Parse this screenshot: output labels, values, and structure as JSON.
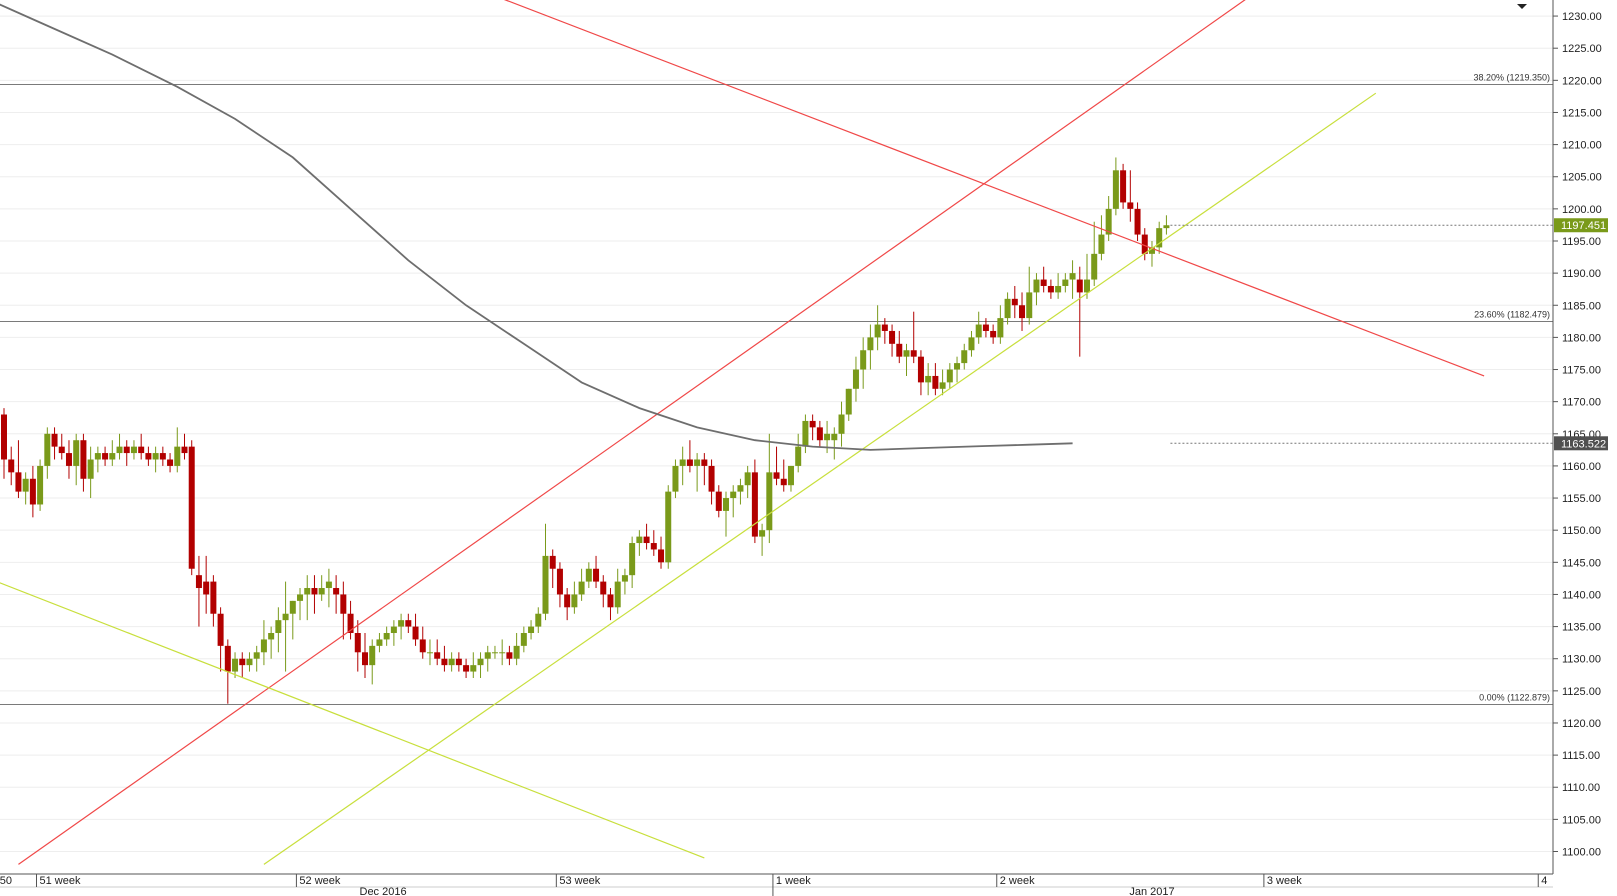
{
  "chart_data": {
    "type": "candlestick",
    "ylim": [
      1096.5,
      1232.5
    ],
    "y_ticks": [
      "1100.00",
      "1105.00",
      "1110.00",
      "1115.00",
      "1120.00",
      "1125.00",
      "1130.00",
      "1135.00",
      "1140.00",
      "1145.00",
      "1150.00",
      "1155.00",
      "1160.00",
      "1165.00",
      "1170.00",
      "1175.00",
      "1180.00",
      "1185.00",
      "1190.00",
      "1195.00",
      "1200.00",
      "1205.00",
      "1210.00",
      "1215.00",
      "1220.00",
      "1225.00",
      "1230.00"
    ],
    "x_week_labels": [
      {
        "label": "50",
        "bar": -1
      },
      {
        "label": "51 week",
        "bar": 4.5
      },
      {
        "label": "52 week",
        "bar": 40.5
      },
      {
        "label": "53 week",
        "bar": 76.5
      },
      {
        "label": "1 week",
        "bar": 106.5
      },
      {
        "label": "2 week",
        "bar": 137.5
      },
      {
        "label": "3 week",
        "bar": 174.5
      },
      {
        "label": "4",
        "bar": 212.5
      }
    ],
    "x_month_labels": [
      {
        "label": "Dec 2016",
        "bar": 52.5
      },
      {
        "label": "Jan 2017",
        "bar": 159
      }
    ],
    "bar_count_visible": 224,
    "candles": [
      [
        1168,
        1169,
        1158,
        1161
      ],
      [
        1161,
        1163,
        1157,
        1159
      ],
      [
        1159,
        1164,
        1155,
        1156
      ],
      [
        1156,
        1159,
        1154,
        1158
      ],
      [
        1158,
        1160,
        1152,
        1154
      ],
      [
        1154,
        1161,
        1153,
        1160
      ],
      [
        1160,
        1166,
        1158,
        1165
      ],
      [
        1165,
        1166,
        1161,
        1163
      ],
      [
        1163,
        1165,
        1161,
        1162
      ],
      [
        1162,
        1164,
        1158,
        1160
      ],
      [
        1160,
        1165,
        1157,
        1164
      ],
      [
        1164,
        1165,
        1156,
        1158
      ],
      [
        1158,
        1163,
        1155,
        1161
      ],
      [
        1161,
        1163,
        1159,
        1162
      ],
      [
        1162,
        1163,
        1160,
        1161
      ],
      [
        1161,
        1164,
        1160,
        1162
      ],
      [
        1162,
        1165,
        1161,
        1163
      ],
      [
        1163,
        1164,
        1160,
        1162
      ],
      [
        1162,
        1164,
        1161,
        1163
      ],
      [
        1163,
        1165,
        1161,
        1162
      ],
      [
        1162,
        1163,
        1160,
        1161
      ],
      [
        1161,
        1163,
        1159,
        1162
      ],
      [
        1162,
        1163,
        1160,
        1161
      ],
      [
        1161,
        1162,
        1159,
        1160
      ],
      [
        1160,
        1166,
        1159,
        1163
      ],
      [
        1163,
        1165,
        1161,
        1162
      ],
      [
        1163,
        1164,
        1143,
        1144
      ],
      [
        1143,
        1146,
        1135,
        1141
      ],
      [
        1142,
        1146,
        1137,
        1140
      ],
      [
        1142,
        1143,
        1135,
        1137
      ],
      [
        1137,
        1138,
        1128,
        1132
      ],
      [
        1132,
        1133,
        1123,
        1128
      ],
      [
        1128,
        1131,
        1127,
        1130
      ],
      [
        1130,
        1131,
        1127,
        1129
      ],
      [
        1129,
        1131,
        1128,
        1130
      ],
      [
        1130,
        1132,
        1128,
        1131
      ],
      [
        1131,
        1136,
        1129,
        1133
      ],
      [
        1133,
        1135,
        1130,
        1134
      ],
      [
        1134,
        1138,
        1131,
        1136
      ],
      [
        1136,
        1142,
        1128,
        1137
      ],
      [
        1137,
        1139,
        1133,
        1139
      ],
      [
        1139,
        1141,
        1136,
        1140
      ],
      [
        1140,
        1143,
        1136,
        1141
      ],
      [
        1141,
        1143,
        1137,
        1140
      ],
      [
        1140,
        1143,
        1139,
        1141
      ],
      [
        1141,
        1144,
        1138,
        1142
      ],
      [
        1141,
        1143,
        1137,
        1140
      ],
      [
        1140,
        1142,
        1133,
        1137
      ],
      [
        1137,
        1139,
        1133,
        1134
      ],
      [
        1134,
        1136,
        1128,
        1131
      ],
      [
        1131,
        1134,
        1127,
        1129
      ],
      [
        1129,
        1133,
        1126,
        1132
      ],
      [
        1132,
        1134,
        1131,
        1133
      ],
      [
        1133,
        1135,
        1132,
        1134
      ],
      [
        1134,
        1136,
        1132,
        1135
      ],
      [
        1135,
        1137,
        1133,
        1136
      ],
      [
        1136,
        1137,
        1134,
        1135
      ],
      [
        1135,
        1137,
        1132,
        1133
      ],
      [
        1133,
        1135,
        1130,
        1131
      ],
      [
        1131,
        1133,
        1129,
        1131
      ],
      [
        1131,
        1133,
        1129,
        1130
      ],
      [
        1130,
        1132,
        1128,
        1129
      ],
      [
        1129,
        1131,
        1128,
        1130
      ],
      [
        1130,
        1131,
        1128,
        1129
      ],
      [
        1129,
        1130,
        1127,
        1128
      ],
      [
        1128,
        1131,
        1127,
        1129
      ],
      [
        1129,
        1131,
        1127,
        1130
      ],
      [
        1130,
        1132,
        1128,
        1131
      ],
      [
        1131,
        1132,
        1130,
        1131
      ],
      [
        1131,
        1133,
        1129,
        1131
      ],
      [
        1131,
        1132,
        1129,
        1130
      ],
      [
        1130,
        1134,
        1129,
        1132
      ],
      [
        1132,
        1135,
        1131,
        1134
      ],
      [
        1134,
        1136,
        1133,
        1135
      ],
      [
        1135,
        1138,
        1134,
        1137
      ],
      [
        1137,
        1151,
        1136,
        1146
      ],
      [
        1146,
        1147,
        1141,
        1144
      ],
      [
        1144,
        1145,
        1138,
        1140
      ],
      [
        1140,
        1141,
        1136,
        1138
      ],
      [
        1138,
        1142,
        1137,
        1140
      ],
      [
        1140,
        1144,
        1139,
        1142
      ],
      [
        1142,
        1145,
        1141,
        1144
      ],
      [
        1144,
        1146,
        1141,
        1142
      ],
      [
        1142,
        1143,
        1138,
        1140
      ],
      [
        1140,
        1141,
        1136,
        1138
      ],
      [
        1138,
        1144,
        1137,
        1142
      ],
      [
        1142,
        1144,
        1140,
        1143
      ],
      [
        1143,
        1149,
        1141,
        1148
      ],
      [
        1148,
        1150,
        1146,
        1149
      ],
      [
        1149,
        1151,
        1147,
        1148
      ],
      [
        1148,
        1150,
        1146,
        1147
      ],
      [
        1147,
        1149,
        1144,
        1145
      ],
      [
        1145,
        1157,
        1144,
        1156
      ],
      [
        1156,
        1161,
        1155,
        1160
      ],
      [
        1160,
        1163,
        1157,
        1161
      ],
      [
        1161,
        1164,
        1159,
        1160
      ],
      [
        1160,
        1162,
        1156,
        1161
      ],
      [
        1161,
        1162,
        1157,
        1160
      ],
      [
        1160,
        1161,
        1154,
        1156
      ],
      [
        1156,
        1157,
        1152,
        1153
      ],
      [
        1153,
        1156,
        1149,
        1155
      ],
      [
        1155,
        1157,
        1152,
        1156
      ],
      [
        1156,
        1158,
        1154,
        1157
      ],
      [
        1157,
        1160,
        1155,
        1159
      ],
      [
        1159,
        1161,
        1148,
        1149
      ],
      [
        1149,
        1151,
        1146,
        1150
      ],
      [
        1150,
        1165,
        1148,
        1159
      ],
      [
        1159,
        1163,
        1157,
        1158
      ],
      [
        1158,
        1161,
        1156,
        1157
      ],
      [
        1157,
        1160,
        1156,
        1160
      ],
      [
        1160,
        1165,
        1159,
        1163
      ],
      [
        1163,
        1168,
        1162,
        1167
      ],
      [
        1167,
        1168,
        1164,
        1166
      ],
      [
        1166,
        1167,
        1163,
        1164
      ],
      [
        1164,
        1167,
        1162,
        1165
      ],
      [
        1164,
        1166,
        1161,
        1165
      ],
      [
        1165,
        1170,
        1163,
        1168
      ],
      [
        1168,
        1172,
        1167,
        1172
      ],
      [
        1172,
        1177,
        1170,
        1175
      ],
      [
        1175,
        1180,
        1172,
        1178
      ],
      [
        1178,
        1182,
        1175,
        1180
      ],
      [
        1180,
        1185,
        1178,
        1182
      ],
      [
        1182,
        1183,
        1179,
        1181
      ],
      [
        1181,
        1182,
        1177,
        1179
      ],
      [
        1179,
        1181,
        1176,
        1177
      ],
      [
        1177,
        1179,
        1174,
        1178
      ],
      [
        1178,
        1184,
        1176,
        1177
      ],
      [
        1177,
        1178,
        1171,
        1173
      ],
      [
        1173,
        1176,
        1171,
        1174
      ],
      [
        1174,
        1176,
        1171,
        1172
      ],
      [
        1172,
        1175,
        1171,
        1173
      ],
      [
        1173,
        1176,
        1172,
        1175
      ],
      [
        1175,
        1177,
        1173,
        1176
      ],
      [
        1176,
        1179,
        1175,
        1178
      ],
      [
        1178,
        1181,
        1177,
        1180
      ],
      [
        1180,
        1184,
        1179,
        1182
      ],
      [
        1182,
        1183,
        1180,
        1181
      ],
      [
        1181,
        1182,
        1179,
        1180
      ],
      [
        1180,
        1185,
        1179,
        1183
      ],
      [
        1183,
        1187,
        1182,
        1186
      ],
      [
        1186,
        1188,
        1183,
        1185
      ],
      [
        1185,
        1187,
        1181,
        1183
      ],
      [
        1183,
        1191,
        1182,
        1187
      ],
      [
        1187,
        1190,
        1185,
        1189
      ],
      [
        1189,
        1191,
        1187,
        1188
      ],
      [
        1188,
        1189,
        1186,
        1187
      ],
      [
        1187,
        1190,
        1186,
        1188
      ],
      [
        1188,
        1190,
        1187,
        1189
      ],
      [
        1189,
        1192,
        1186,
        1190
      ],
      [
        1189,
        1191,
        1177,
        1187
      ],
      [
        1187,
        1193,
        1186,
        1189
      ],
      [
        1189,
        1198,
        1188,
        1193
      ],
      [
        1193,
        1199,
        1192,
        1196
      ],
      [
        1196,
        1202,
        1195,
        1200
      ],
      [
        1200,
        1208,
        1199,
        1206
      ],
      [
        1206,
        1207,
        1200,
        1201
      ],
      [
        1201,
        1206,
        1198,
        1200
      ],
      [
        1200,
        1201,
        1195,
        1196
      ],
      [
        1196,
        1197,
        1192,
        1193
      ],
      [
        1193,
        1195,
        1191,
        1194
      ],
      [
        1194,
        1198,
        1193,
        1197
      ],
      [
        1197,
        1199,
        1196,
        1197.451
      ]
    ],
    "lines": [
      {
        "name": "ma",
        "color": "#6e6e6e",
        "points": [
          [
            -1,
            1232
          ],
          [
            5,
            1229
          ],
          [
            15,
            1224
          ],
          [
            24,
            1219
          ],
          [
            32,
            1214
          ],
          [
            40,
            1208
          ],
          [
            48,
            1200
          ],
          [
            56,
            1192
          ],
          [
            64,
            1185
          ],
          [
            72,
            1179
          ],
          [
            80,
            1173
          ],
          [
            88,
            1169
          ],
          [
            96,
            1166
          ],
          [
            104,
            1164
          ],
          [
            112,
            1163
          ],
          [
            120,
            1162.5
          ],
          [
            128,
            1162.8
          ],
          [
            136,
            1163.1
          ],
          [
            142,
            1163.3
          ],
          [
            148,
            1163.522
          ]
        ]
      }
    ],
    "trendlines": [
      {
        "name": "red-down",
        "color": "#f04848",
        "p1": [
          66,
          1234
        ],
        "p2": [
          205,
          1174
        ]
      },
      {
        "name": "red-up",
        "color": "#f04848",
        "p1": [
          2,
          1098
        ],
        "p2": [
          175,
          1235
        ]
      },
      {
        "name": "green-up",
        "color": "#c8df3c",
        "p1": [
          36,
          1098
        ],
        "p2": [
          190,
          1218
        ]
      },
      {
        "name": "green-down",
        "color": "#c8df3c",
        "p1": [
          -1,
          1142
        ],
        "p2": [
          97,
          1099
        ]
      }
    ],
    "fib_levels": [
      {
        "label": "38.20% (1219.350)",
        "value": 1219.35
      },
      {
        "label": "23.60% (1182.479)",
        "value": 1182.479
      },
      {
        "label": "0.00% (1122.879)",
        "value": 1122.879
      }
    ],
    "price_tags": [
      {
        "label": "1197.451",
        "value": 1197.451,
        "color": "#7a9a1a"
      },
      {
        "label": "1163.522",
        "value": 1163.522,
        "color": "#505050"
      }
    ],
    "colors": {
      "bull": "#7a9a1a",
      "bear": "#b20000",
      "grid": "#eeeeee",
      "axis": "#555555"
    }
  }
}
